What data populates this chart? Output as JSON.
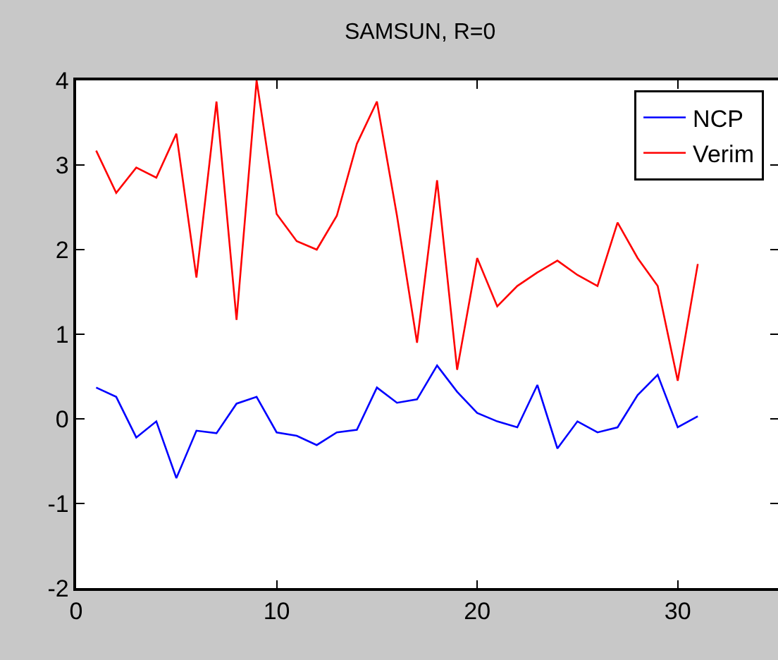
{
  "chart_data": {
    "type": "line",
    "title": "SAMSUN, R=0",
    "x": [
      1,
      2,
      3,
      4,
      5,
      6,
      7,
      8,
      9,
      10,
      11,
      12,
      13,
      14,
      15,
      16,
      17,
      18,
      19,
      20,
      21,
      22,
      23,
      24,
      25,
      26,
      27,
      28,
      29,
      30,
      31
    ],
    "series": [
      {
        "name": "NCP",
        "color": "#0000ff",
        "values": [
          0.37,
          0.26,
          -0.22,
          -0.03,
          -0.7,
          -0.14,
          -0.17,
          0.18,
          0.26,
          -0.16,
          -0.2,
          -0.31,
          -0.16,
          -0.13,
          0.37,
          0.19,
          0.23,
          0.63,
          0.32,
          0.07,
          -0.03,
          -0.1,
          0.4,
          -0.35,
          -0.03,
          -0.16,
          -0.1,
          0.28,
          0.52,
          -0.1,
          0.03
        ]
      },
      {
        "name": "Verim",
        "color": "#ff0000",
        "values": [
          3.17,
          2.67,
          2.97,
          2.85,
          3.37,
          1.67,
          3.75,
          1.17,
          4.0,
          2.42,
          2.1,
          2.0,
          2.4,
          3.25,
          3.75,
          2.4,
          0.9,
          2.82,
          0.58,
          1.9,
          1.33,
          1.57,
          1.73,
          1.87,
          1.7,
          1.57,
          2.32,
          1.9,
          1.57,
          0.45,
          1.83
        ]
      }
    ],
    "xlim": [
      0,
      35
    ],
    "xticks": [
      0,
      10,
      20,
      30
    ],
    "ylim": [
      -2,
      4
    ],
    "yticks": [
      -2,
      -1,
      0,
      1,
      2,
      3,
      4
    ],
    "grid": false,
    "legend": "top right",
    "marker": "none",
    "line_style": "solid"
  }
}
